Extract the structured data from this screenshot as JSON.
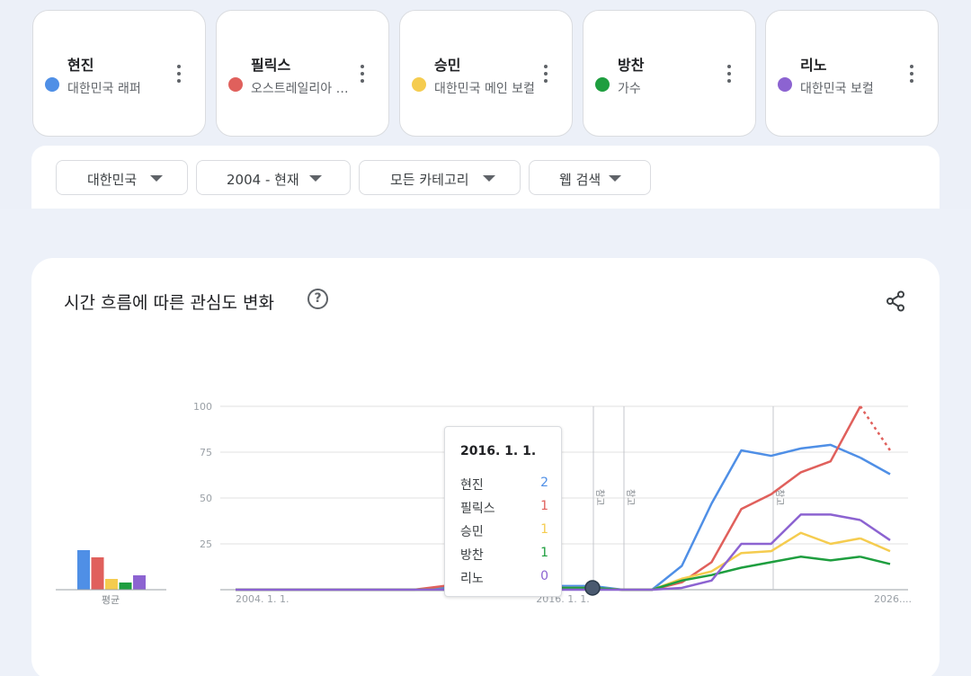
{
  "terms": [
    {
      "name": "현진",
      "subtitle": "대한민국 래퍼",
      "color": "#4f8fe6"
    },
    {
      "name": "필릭스",
      "subtitle": "오스트레일리아 가수",
      "color": "#e0605c"
    },
    {
      "name": "승민",
      "subtitle": "대한민국 메인 보컬",
      "color": "#f5cc4f"
    },
    {
      "name": "방찬",
      "subtitle": "가수",
      "color": "#1e9e3f"
    },
    {
      "name": "리노",
      "subtitle": "대한민국 보컬",
      "color": "#8c63d1"
    }
  ],
  "filters": {
    "region": "대한민국",
    "period": "2004 - 현재",
    "category": "모든 카테고리",
    "search_type": "웹 검색"
  },
  "chart_card": {
    "title": "시간 흐름에 따른 관심도 변화",
    "help_icon": "help-circle-icon",
    "share_icon": "share-icon"
  },
  "chart_data": {
    "type": "line",
    "title": "시간 흐름에 따른 관심도 변화",
    "yticks": [
      100,
      75,
      50,
      25
    ],
    "ylim": [
      0,
      100
    ],
    "x_labels": [
      "2004. 1. 1.",
      "2016. 1. 1.",
      "2026...."
    ],
    "note_label": "참고",
    "average_label": "평균",
    "averages": [
      22,
      18,
      6,
      4,
      8
    ],
    "x": [
      "2004-01",
      "2005-01",
      "2006-01",
      "2007-01",
      "2008-01",
      "2009-01",
      "2010-01",
      "2011-01",
      "2012-01",
      "2013-01",
      "2014-01",
      "2015-01",
      "2016-01",
      "2017-01",
      "2018-01",
      "2019-01",
      "2020-01",
      "2021-01",
      "2022-01",
      "2023-01",
      "2024-01",
      "2025-01",
      "2026-01"
    ],
    "series": [
      {
        "name": "현진",
        "values": [
          0,
          0,
          0,
          0,
          0,
          0,
          0,
          1,
          2,
          2,
          2,
          2,
          2,
          0,
          0,
          13,
          47,
          76,
          73,
          77,
          79,
          72,
          63
        ]
      },
      {
        "name": "필릭스",
        "values": [
          0,
          0,
          0,
          0,
          0,
          0,
          0,
          2,
          1,
          1,
          1,
          1,
          1,
          0,
          0,
          4,
          15,
          44,
          52,
          64,
          70,
          100,
          76
        ]
      },
      {
        "name": "승민",
        "values": [
          0,
          0,
          0,
          0,
          0,
          0,
          0,
          0,
          1,
          1,
          1,
          1,
          1,
          0,
          0,
          6,
          10,
          20,
          21,
          31,
          25,
          28,
          21
        ]
      },
      {
        "name": "방찬",
        "values": [
          0,
          0,
          0,
          0,
          0,
          0,
          0,
          0,
          1,
          1,
          1,
          1,
          1,
          0,
          0,
          5,
          8,
          12,
          15,
          18,
          16,
          18,
          14
        ]
      },
      {
        "name": "리노",
        "values": [
          0,
          0,
          0,
          0,
          0,
          0,
          0,
          0,
          0,
          0,
          0,
          0,
          0,
          0,
          0,
          1,
          5,
          25,
          25,
          41,
          41,
          38,
          27
        ]
      }
    ],
    "dashed_last_segment": true,
    "grid": true
  },
  "tooltip": {
    "date": "2016. 1. 1.",
    "rows": [
      {
        "name": "현진",
        "value": "2",
        "color": "#4f8fe6"
      },
      {
        "name": "필릭스",
        "value": "1",
        "color": "#e0605c"
      },
      {
        "name": "승민",
        "value": "1",
        "color": "#f5cc4f"
      },
      {
        "name": "방찬",
        "value": "1",
        "color": "#1e9e3f"
      },
      {
        "name": "리노",
        "value": "0",
        "color": "#8c63d1"
      }
    ]
  }
}
